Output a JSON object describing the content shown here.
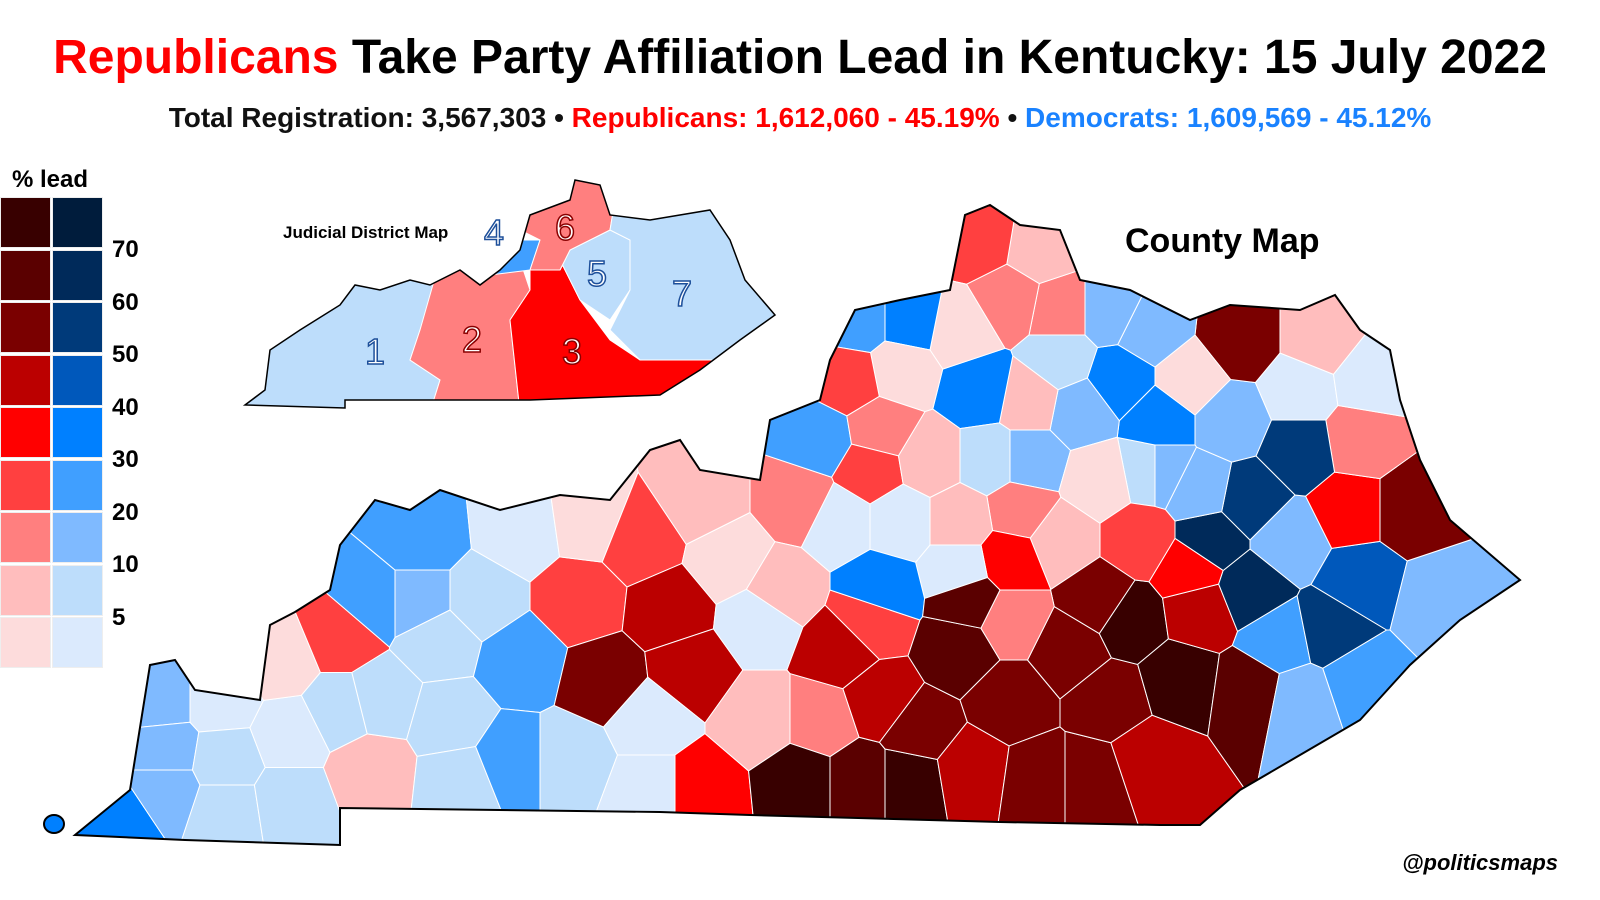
{
  "title": {
    "highlight": "Republicans",
    "rest": " Take Party Affiliation Lead in Kentucky: 15 July 2022"
  },
  "subtitle": {
    "total": "Total Registration: 3,567,303",
    "sep": " • ",
    "republicans": "Republicans: 1,612,060 - 45.19%",
    "democrats": "Democrats: 1,609,569 - 45.12%"
  },
  "legend": {
    "title": "% lead",
    "labels": [
      "70",
      "60",
      "50",
      "40",
      "30",
      "20",
      "10",
      "5"
    ],
    "red": [
      "#380000",
      "#5a0000",
      "#7a0000",
      "#bb0000",
      "#ff0000",
      "#ff4040",
      "#ff7f7f",
      "#ffbdbd",
      "#fddcdc"
    ],
    "blue": [
      "#001c3c",
      "#002a5a",
      "#003a7a",
      "#0058bb",
      "#0080ff",
      "#409fff",
      "#7fbaff",
      "#bdddfb",
      "#dbeafd"
    ]
  },
  "inset": {
    "title": "Judicial District Map",
    "districts": [
      {
        "number": "1",
        "color": "#bdddfb"
      },
      {
        "number": "2",
        "color": "#ff7f7f"
      },
      {
        "number": "3",
        "color": "#ff0000"
      },
      {
        "number": "4",
        "color": "#409fff"
      },
      {
        "number": "5",
        "color": "#bdddfb"
      },
      {
        "number": "6",
        "color": "#ff7f7f"
      },
      {
        "number": "7",
        "color": "#bdddfb"
      }
    ]
  },
  "county_map": {
    "title": "County Map"
  },
  "credit": "@politicsmaps"
}
